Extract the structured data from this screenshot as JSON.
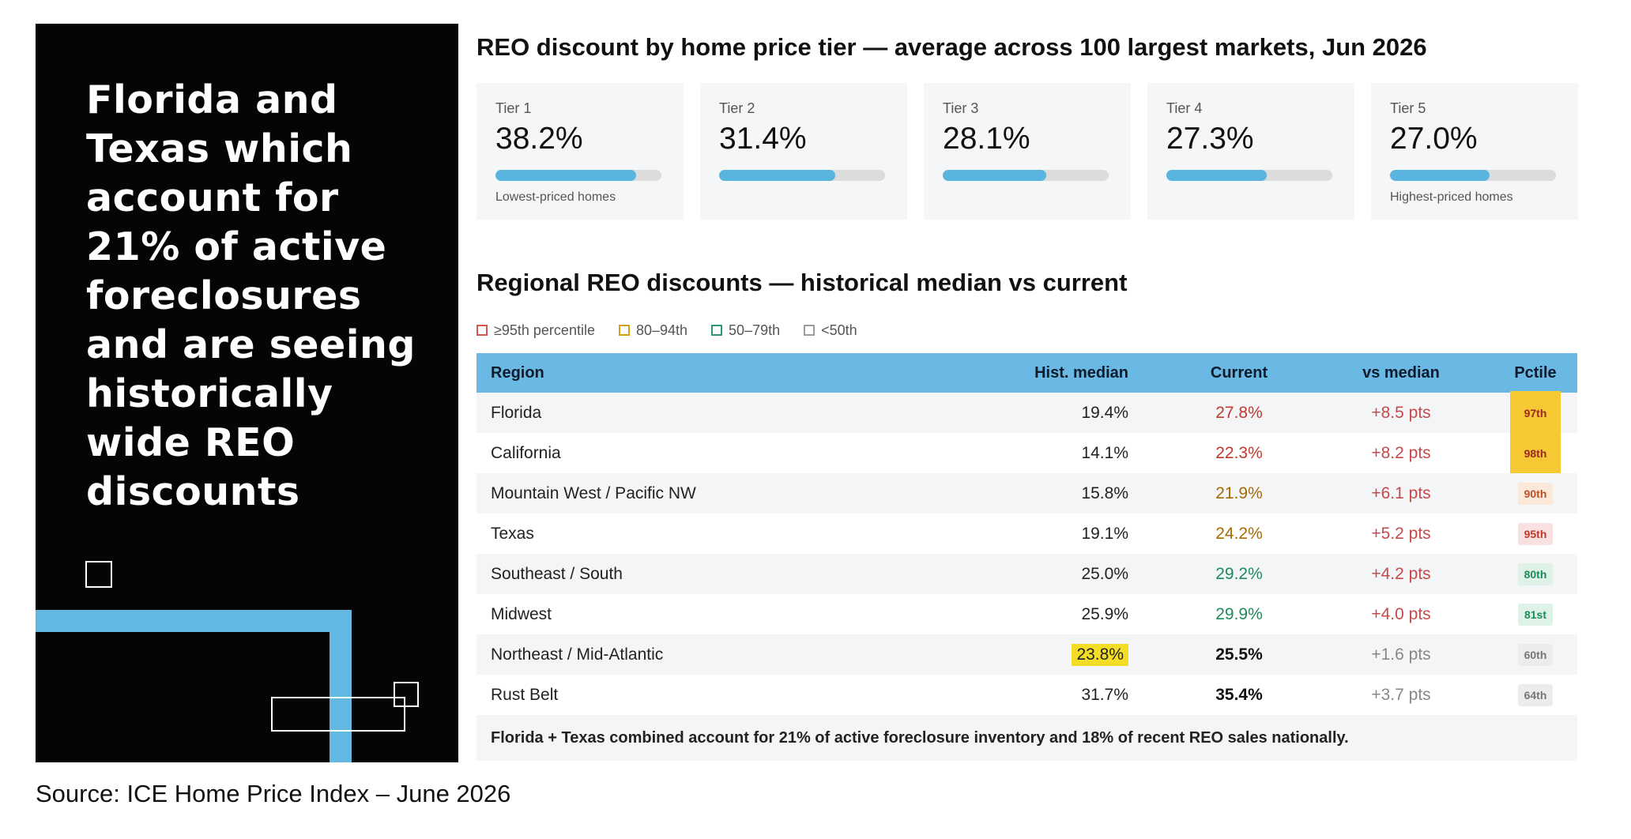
{
  "headline": "Florida and\nTexas which\naccount for\n21% of active\nforeclosures\nand  are seeing\nhistorically\nwide REO\ndiscounts",
  "source": "Source: ICE Home Price Index – June 2026",
  "tier_section": {
    "title": "REO discount by home price tier — average across 100 largest markets, Jun 2026"
  },
  "region_section": {
    "title": "Regional REO discounts — historical median vs current"
  },
  "legend": [
    {
      "label": "≥95th percentile",
      "color": "#d9534f"
    },
    {
      "label": "80–94th",
      "color": "#d4a017"
    },
    {
      "label": "50–79th",
      "color": "#2e9a6e"
    },
    {
      "label": "<50th",
      "color": "#9e9e9e"
    }
  ],
  "colors": {
    "accent_blue": "#62b7e3",
    "red_text": "#c0392b",
    "amber_text": "#a86a00",
    "green_text": "#1f8a5b",
    "highlight_yellow": "#f3dd27"
  },
  "chart_data": [
    {
      "type": "bar",
      "title": "REO discount by home price tier — average across 100 largest markets, Jun 2026",
      "categories": [
        "Tier 1",
        "Tier 2",
        "Tier 3",
        "Tier 4",
        "Tier 5"
      ],
      "values": [
        38.2,
        31.4,
        28.1,
        27.3,
        27.0
      ],
      "value_labels": [
        "38.2%",
        "31.4%",
        "28.1%",
        "27.3%",
        "27.0%"
      ],
      "notes": [
        "Lowest-priced homes",
        "",
        "",
        "",
        "Highest-priced homes"
      ],
      "ylim": [
        0,
        45
      ]
    },
    {
      "type": "table",
      "title": "Regional REO discounts — historical median vs current",
      "columns": [
        "Region",
        "Hist. median",
        "Current",
        "vs median",
        "Pctile"
      ],
      "rows": [
        {
          "region": "Florida",
          "hist": "19.4%",
          "current": "27.8%",
          "vs": "+8.5 pts",
          "pctile": "97th",
          "band": "top",
          "hist_highlight": false
        },
        {
          "region": "California",
          "hist": "14.1%",
          "current": "22.3%",
          "vs": "+8.2 pts",
          "pctile": "98th",
          "band": "top",
          "hist_highlight": false
        },
        {
          "region": "Mountain West / Pacific NW",
          "hist": "15.8%",
          "current": "21.9%",
          "vs": "+6.1 pts",
          "pctile": "90th",
          "band": "high",
          "hist_highlight": false
        },
        {
          "region": "Texas",
          "hist": "19.1%",
          "current": "24.2%",
          "vs": "+5.2 pts",
          "pctile": "95th",
          "band": "red",
          "hist_highlight": false
        },
        {
          "region": "Southeast / South",
          "hist": "25.0%",
          "current": "29.2%",
          "vs": "+4.2 pts",
          "pctile": "80th",
          "band": "mid",
          "hist_highlight": false
        },
        {
          "region": "Midwest",
          "hist": "25.9%",
          "current": "29.9%",
          "vs": "+4.0 pts",
          "pctile": "81st",
          "band": "mid",
          "hist_highlight": false
        },
        {
          "region": "Northeast / Mid-Atlantic",
          "hist": "23.8%",
          "current": "25.5%",
          "vs": "+1.6 pts",
          "pctile": "60th",
          "band": "low",
          "hist_highlight": true
        },
        {
          "region": "Rust Belt",
          "hist": "31.7%",
          "current": "35.4%",
          "vs": "+3.7 pts",
          "pctile": "64th",
          "band": "low",
          "hist_highlight": false
        }
      ],
      "footer": "Florida + Texas combined account for 21% of active foreclosure inventory and 18% of recent REO sales nationally."
    }
  ]
}
